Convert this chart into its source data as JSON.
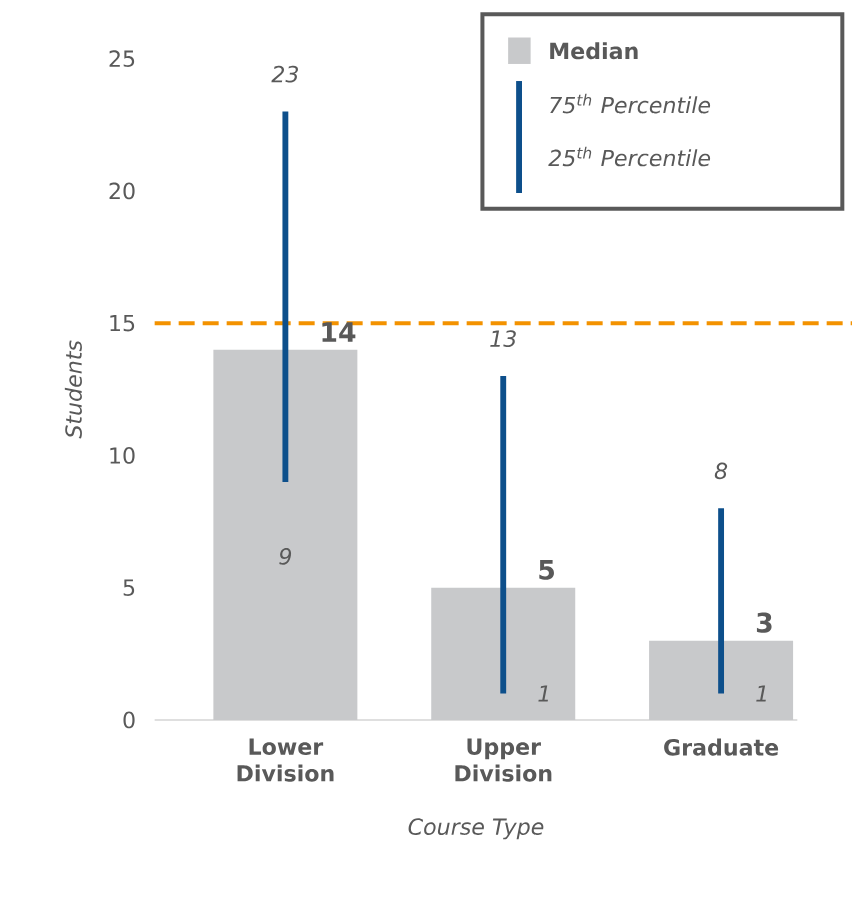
{
  "chart_data": {
    "type": "bar",
    "categories": [
      "Lower Division",
      "Upper Division",
      "Graduate"
    ],
    "series": [
      {
        "name": "Median",
        "color": "#c8c9cb",
        "values": [
          14,
          5,
          3
        ],
        "errors": [
          [
            9,
            23
          ],
          [
            1,
            13
          ],
          [
            1,
            8
          ]
        ]
      }
    ],
    "data_labels": true,
    "xlabel": "Course Type",
    "ylabel": "Students",
    "ylim": [
      0,
      25
    ],
    "yticks": [
      0,
      5,
      10,
      15,
      20,
      25
    ],
    "ref_lines": [
      {
        "axis": "y",
        "value": 15,
        "color": "#f39200",
        "line_style": "dashed"
      }
    ],
    "annotations": [
      {
        "text": "23",
        "x": "Lower Division",
        "y": 23
      },
      {
        "text": "9",
        "x": "Lower Division",
        "y": 9
      },
      {
        "text": "13",
        "x": "Upper Division",
        "y": 13
      },
      {
        "text": "1",
        "x": "Upper Division",
        "y": 1
      },
      {
        "text": "8",
        "x": "Graduate",
        "y": 8
      },
      {
        "text": "1",
        "x": "Graduate",
        "y": 1
      },
      "75$^{th}$ Percentile",
      "25$^{th}$ Percentile"
    ],
    "legend": "top right",
    "grid": false
  }
}
